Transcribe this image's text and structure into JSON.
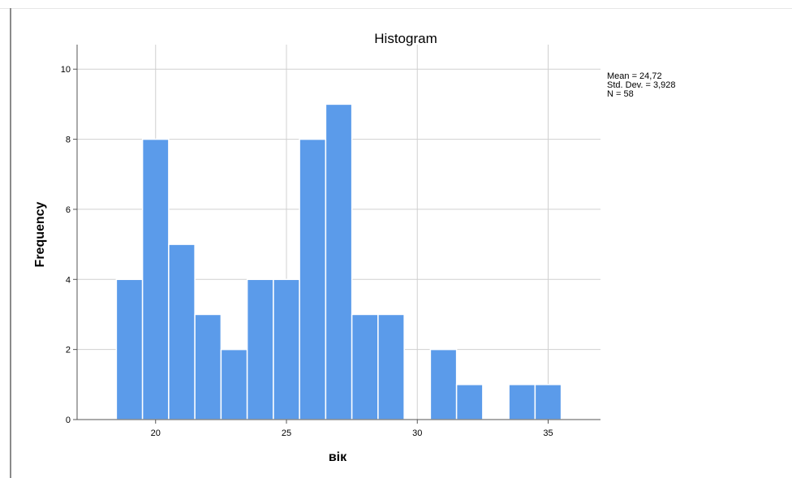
{
  "chart_data": {
    "type": "bar",
    "title": "Histogram",
    "xlabel": "вік",
    "ylabel": "Frequency",
    "xlim": [
      17,
      37
    ],
    "ylim": [
      0,
      10.7
    ],
    "x_ticks": [
      20,
      25,
      30,
      35
    ],
    "y_ticks": [
      0,
      2,
      4,
      6,
      8,
      10
    ],
    "bin_width": 1,
    "bins": [
      {
        "x_start": 18.5,
        "x_end": 19.5,
        "value": 4
      },
      {
        "x_start": 19.5,
        "x_end": 20.5,
        "value": 8
      },
      {
        "x_start": 20.5,
        "x_end": 21.5,
        "value": 5
      },
      {
        "x_start": 21.5,
        "x_end": 22.5,
        "value": 3
      },
      {
        "x_start": 22.5,
        "x_end": 23.5,
        "value": 2
      },
      {
        "x_start": 23.5,
        "x_end": 24.5,
        "value": 4
      },
      {
        "x_start": 24.5,
        "x_end": 25.5,
        "value": 4
      },
      {
        "x_start": 25.5,
        "x_end": 26.5,
        "value": 8
      },
      {
        "x_start": 26.5,
        "x_end": 27.5,
        "value": 9
      },
      {
        "x_start": 27.5,
        "x_end": 28.5,
        "value": 3
      },
      {
        "x_start": 28.5,
        "x_end": 29.5,
        "value": 3
      },
      {
        "x_start": 30.5,
        "x_end": 31.5,
        "value": 2
      },
      {
        "x_start": 31.5,
        "x_end": 32.5,
        "value": 1
      },
      {
        "x_start": 33.5,
        "x_end": 34.5,
        "value": 1
      },
      {
        "x_start": 34.5,
        "x_end": 35.5,
        "value": 1
      }
    ],
    "stats": [
      "Mean = 24,72",
      "Std. Dev. = 3,928",
      "N = 58"
    ],
    "grid": true,
    "colors": {
      "bar": "#5b9bea",
      "bar_edge": "#ffffff",
      "grid": "#d0d0d0",
      "axis": "#555555"
    }
  }
}
